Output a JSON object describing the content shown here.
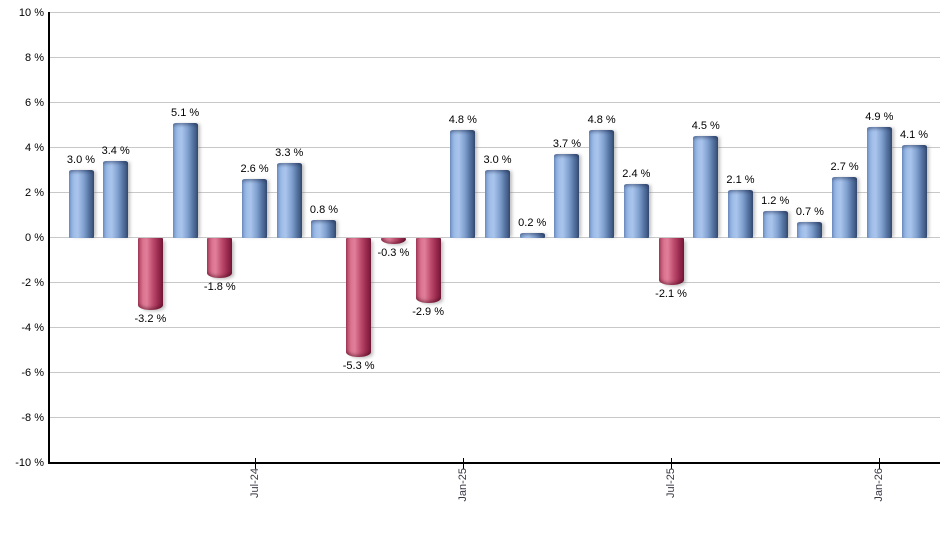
{
  "chart_data": {
    "type": "bar",
    "title": "",
    "xlabel": "",
    "ylabel": "",
    "unit": "%",
    "ylim": [
      -10,
      10
    ],
    "y_tick_step": 2,
    "grid": true,
    "legend": false,
    "values": [
      3.0,
      3.4,
      -3.2,
      5.1,
      -1.8,
      2.6,
      3.3,
      0.8,
      -5.3,
      -0.3,
      -2.9,
      4.8,
      3.0,
      0.2,
      3.7,
      4.8,
      2.4,
      -2.1,
      4.5,
      2.1,
      1.2,
      0.7,
      2.7,
      4.9,
      4.1
    ],
    "bar_labels": [
      "3.0 %",
      "3.4 %",
      "-3.2 %",
      "5.1 %",
      "-1.8 %",
      "2.6 %",
      "3.3 %",
      "0.8 %",
      "-5.3 %",
      "-0.3 %",
      "-2.9 %",
      "4.8 %",
      "3.0 %",
      "0.2 %",
      "3.7 %",
      "4.8 %",
      "2.4 %",
      "-2.1 %",
      "4.5 %",
      "2.1 %",
      "1.2 %",
      "0.7 %",
      "2.7 %",
      "4.9 %",
      "4.1 %"
    ],
    "x_ticks": [
      {
        "bar_index": 5,
        "label": "Jul-24"
      },
      {
        "bar_index": 11,
        "label": "Jan-25"
      },
      {
        "bar_index": 17,
        "label": "Jul-25"
      },
      {
        "bar_index": 23,
        "label": "Jan-26"
      }
    ],
    "y_tick_labels": [
      "10 %",
      "8 %",
      "6 %",
      "4 %",
      "2 %",
      "0 %",
      "-2 %",
      "-4 %",
      "-6 %",
      "-8 %",
      "-10 %"
    ],
    "colors": {
      "positive_bar_light": "#a9c5ec",
      "positive_bar_dark": "#3a5278",
      "negative_bar_light": "#e07e99",
      "negative_bar_dark": "#7d1b3e",
      "gridline": "#c8c8c8",
      "axis": "#000000",
      "value_label_text": "#000000",
      "x_tick_label_text": "#3a3a46"
    }
  }
}
